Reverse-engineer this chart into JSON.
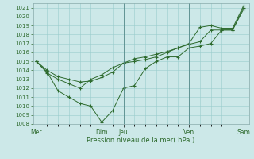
{
  "xlabel": "Pression niveau de la mer( hPa )",
  "background_color": "#cce8e8",
  "grid_color": "#99cccc",
  "line_color": "#2d6a2d",
  "ylim": [
    1008,
    1021.5
  ],
  "yticks": [
    1008,
    1009,
    1010,
    1011,
    1012,
    1013,
    1014,
    1015,
    1016,
    1017,
    1018,
    1019,
    1020,
    1021
  ],
  "xtick_labels": [
    "Mer",
    "Dim",
    "Jeu",
    "Ven",
    "Sam"
  ],
  "xtick_positions": [
    0,
    6,
    8,
    14,
    19
  ],
  "xlim": [
    -0.3,
    19.5
  ],
  "line1_x": [
    0,
    1,
    2,
    3,
    4,
    5,
    6,
    7,
    8,
    9,
    10,
    11,
    12,
    13,
    14,
    15,
    16,
    17,
    18,
    19
  ],
  "line1_y": [
    1015.0,
    1014.0,
    1013.3,
    1013.0,
    1012.7,
    1012.8,
    1013.2,
    1013.8,
    1014.8,
    1015.0,
    1015.2,
    1015.5,
    1016.0,
    1016.5,
    1016.9,
    1017.2,
    1018.5,
    1018.5,
    1018.5,
    1021.0
  ],
  "line2_x": [
    0,
    1,
    2,
    3,
    4,
    5,
    6,
    7,
    8,
    9,
    10,
    11,
    12,
    13,
    14,
    15,
    16,
    17,
    18,
    19
  ],
  "line2_y": [
    1015.0,
    1013.8,
    1011.7,
    1011.0,
    1010.3,
    1010.0,
    1008.2,
    1009.5,
    1012.0,
    1012.3,
    1014.2,
    1015.0,
    1015.5,
    1015.5,
    1016.5,
    1016.7,
    1017.0,
    1018.5,
    1018.5,
    1020.8
  ],
  "line3_x": [
    0,
    1,
    2,
    3,
    4,
    5,
    6,
    7,
    8,
    9,
    10,
    11,
    12,
    13,
    14,
    15,
    16,
    17,
    18,
    19
  ],
  "line3_y": [
    1015.0,
    1013.7,
    1013.0,
    1012.5,
    1012.0,
    1013.0,
    1013.5,
    1014.3,
    1014.8,
    1015.3,
    1015.5,
    1015.8,
    1016.1,
    1016.5,
    1017.0,
    1018.8,
    1019.0,
    1018.7,
    1018.7,
    1021.2
  ]
}
